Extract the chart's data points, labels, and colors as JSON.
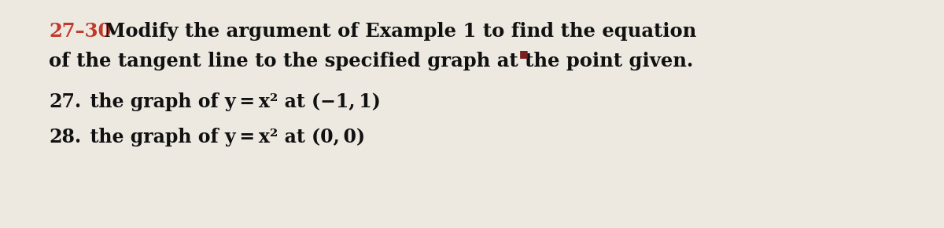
{
  "background_color": "#ede8e0",
  "title_number": "27–30",
  "title_number_color": "#c0392b",
  "title_rest": " Modify the argument of Example 1 to find the equation",
  "line2_text": "of the tangent line to the specified graph at the point given.",
  "square_color": "#7a2020",
  "item27_num": "27.",
  "item27_rest": "  the graph of y = x² at (−1, 1)",
  "item28_num": "28.",
  "item28_rest": "  the graph of y = x² at (0, 0)",
  "font_size_header": 17.5,
  "font_size_items": 17,
  "text_color": "#111111",
  "fig_width": 12.0,
  "fig_height": 2.91,
  "dpi": 100
}
